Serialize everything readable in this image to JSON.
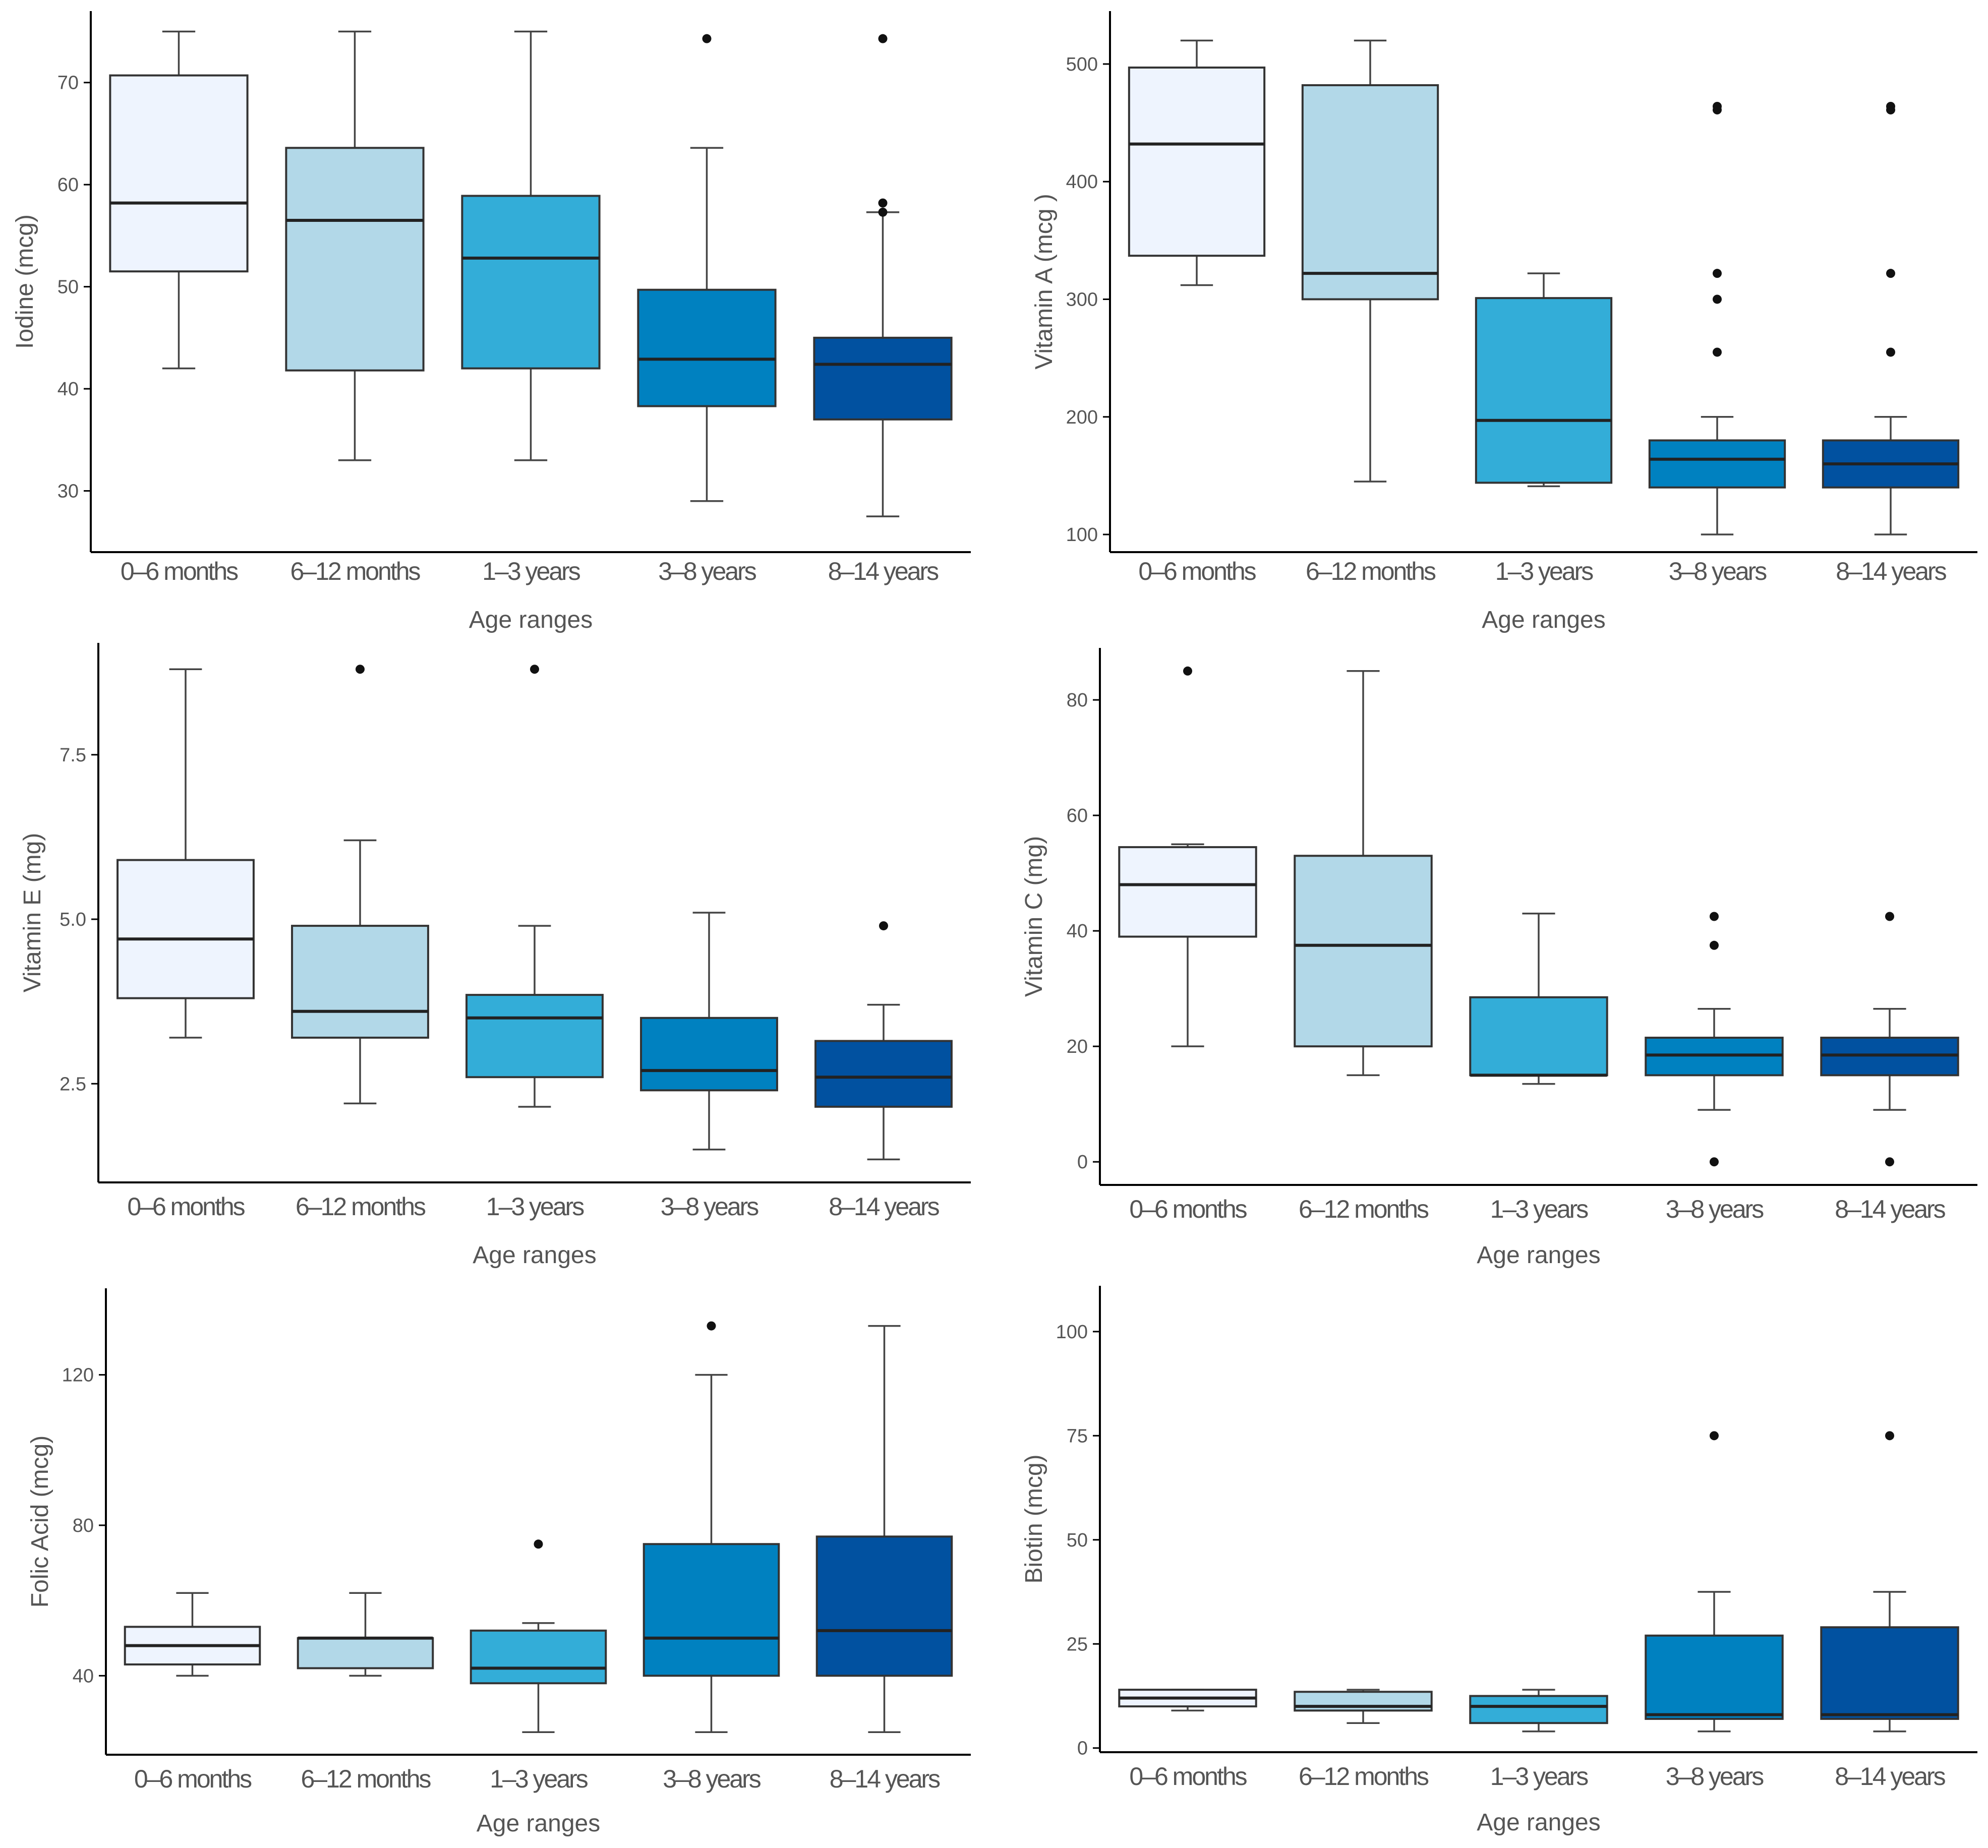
{
  "palette": [
    "#eef4fe",
    "#b2d8e8",
    "#33add8",
    "#0081c0",
    "#0151a0"
  ],
  "chart_data": [
    {
      "type": "boxplot",
      "ylabel": "Iodine (mcg)",
      "xlabel": "Age ranges",
      "ylim": [
        24,
        77
      ],
      "yticks": [
        30,
        40,
        50,
        60,
        70
      ],
      "categories": [
        "0–6 months",
        "6–12 months",
        "1–3 years",
        "3–8 years",
        "8–14 years"
      ],
      "boxes": [
        {
          "min": 42,
          "q1": 51.5,
          "median": 58.2,
          "q3": 70.7,
          "max": 75,
          "outliers": []
        },
        {
          "min": 33,
          "q1": 41.8,
          "median": 56.5,
          "q3": 63.6,
          "max": 75,
          "outliers": []
        },
        {
          "min": 33,
          "q1": 42,
          "median": 52.8,
          "q3": 58.9,
          "max": 75,
          "outliers": []
        },
        {
          "min": 29,
          "q1": 38.3,
          "median": 42.9,
          "q3": 49.7,
          "max": 63.6,
          "outliers": [
            74.3
          ]
        },
        {
          "min": 27.5,
          "q1": 37,
          "median": 42.4,
          "q3": 45,
          "max": 57.3,
          "outliers": [
            57.3,
            58.2,
            74.3
          ]
        }
      ]
    },
    {
      "type": "boxplot",
      "ylabel": "Vitamin A (mcg )",
      "xlabel": "Age ranges",
      "ylim": [
        85,
        545
      ],
      "yticks": [
        100,
        200,
        300,
        400,
        500
      ],
      "categories": [
        "0–6 months",
        "6–12 months",
        "1–3 years",
        "3–8 years",
        "8–14 years"
      ],
      "boxes": [
        {
          "min": 312,
          "q1": 337,
          "median": 432,
          "q3": 497,
          "max": 520,
          "outliers": []
        },
        {
          "min": 145,
          "q1": 300,
          "median": 322,
          "q3": 482,
          "max": 520,
          "outliers": []
        },
        {
          "min": 141,
          "q1": 144,
          "median": 197,
          "q3": 301,
          "max": 322,
          "outliers": []
        },
        {
          "min": 100,
          "q1": 140,
          "median": 164,
          "q3": 180,
          "max": 200,
          "outliers": [
            255,
            300,
            322,
            461,
            464
          ]
        },
        {
          "min": 100,
          "q1": 140,
          "median": 160,
          "q3": 180,
          "max": 200,
          "outliers": [
            255,
            322,
            461,
            464
          ]
        }
      ]
    },
    {
      "type": "boxplot",
      "ylabel": "Vitamin E (mg)",
      "xlabel": "Age ranges",
      "ylim": [
        1,
        9.2
      ],
      "yticks": [
        2.5,
        5.0,
        7.5
      ],
      "ytick_labels": [
        "2.5",
        "5.0",
        "7.5"
      ],
      "categories": [
        "0–6 months",
        "6–12 months",
        "1–3 years",
        "3–8 years",
        "8–14 years"
      ],
      "boxes": [
        {
          "min": 3.2,
          "q1": 3.8,
          "median": 4.7,
          "q3": 5.9,
          "max": 8.8,
          "outliers": []
        },
        {
          "min": 2.2,
          "q1": 3.2,
          "median": 3.6,
          "q3": 4.9,
          "max": 6.2,
          "outliers": [
            8.8
          ]
        },
        {
          "min": 2.15,
          "q1": 2.6,
          "median": 3.5,
          "q3": 3.85,
          "max": 4.9,
          "outliers": [
            8.8
          ]
        },
        {
          "min": 1.5,
          "q1": 2.4,
          "median": 2.7,
          "q3": 3.5,
          "max": 5.1,
          "outliers": []
        },
        {
          "min": 1.35,
          "q1": 2.15,
          "median": 2.6,
          "q3": 3.15,
          "max": 3.7,
          "outliers": [
            4.9
          ]
        }
      ]
    },
    {
      "type": "boxplot",
      "ylabel": "Vitamin C (mg)",
      "xlabel": "Age ranges",
      "ylim": [
        -4,
        89
      ],
      "yticks": [
        0,
        20,
        40,
        60,
        80
      ],
      "categories": [
        "0–6 months",
        "6–12 months",
        "1–3 years",
        "3–8 years",
        "8–14 years"
      ],
      "boxes": [
        {
          "min": 20,
          "q1": 39,
          "median": 48,
          "q3": 54.5,
          "max": 55,
          "outliers": [
            85
          ]
        },
        {
          "min": 15,
          "q1": 20,
          "median": 37.5,
          "q3": 53,
          "max": 85,
          "outliers": []
        },
        {
          "min": 13.5,
          "q1": 15,
          "median": 15,
          "q3": 28.5,
          "max": 43,
          "outliers": []
        },
        {
          "min": 9,
          "q1": 15,
          "median": 18.5,
          "q3": 21.5,
          "max": 26.5,
          "outliers": [
            0,
            37.5,
            42.5
          ]
        },
        {
          "min": 9,
          "q1": 15,
          "median": 18.5,
          "q3": 21.5,
          "max": 26.5,
          "outliers": [
            0,
            42.5
          ]
        }
      ]
    },
    {
      "type": "boxplot",
      "ylabel": "Folic Acid (mcg)",
      "xlabel": "Age ranges",
      "ylim": [
        19,
        143
      ],
      "yticks": [
        40,
        80,
        120
      ],
      "categories": [
        "0–6 months",
        "6–12 months",
        "1–3 years",
        "3–8 years",
        "8–14 years"
      ],
      "boxes": [
        {
          "min": 40,
          "q1": 43,
          "median": 48,
          "q3": 53,
          "max": 62,
          "outliers": []
        },
        {
          "min": 40,
          "q1": 42,
          "median": 50,
          "q3": 50,
          "max": 62,
          "outliers": []
        },
        {
          "min": 25,
          "q1": 38,
          "median": 42,
          "q3": 52,
          "max": 54,
          "outliers": [
            75
          ]
        },
        {
          "min": 25,
          "q1": 40,
          "median": 50,
          "q3": 75,
          "max": 120,
          "outliers": [
            133
          ]
        },
        {
          "min": 25,
          "q1": 40,
          "median": 52,
          "q3": 77,
          "max": 133,
          "outliers": []
        }
      ]
    },
    {
      "type": "boxplot",
      "ylabel": "Biotin (mcg)",
      "xlabel": "Age ranges",
      "ylim": [
        -1,
        111
      ],
      "yticks": [
        0,
        25,
        50,
        75,
        100
      ],
      "categories": [
        "0–6 months",
        "6–12 months",
        "1–3 years",
        "3–8 years",
        "8–14 years"
      ],
      "boxes": [
        {
          "min": 9,
          "q1": 10,
          "median": 12,
          "q3": 14,
          "max": 14,
          "outliers": []
        },
        {
          "min": 6,
          "q1": 9,
          "median": 10,
          "q3": 13.5,
          "max": 14,
          "outliers": []
        },
        {
          "min": 4,
          "q1": 6,
          "median": 10,
          "q3": 12.5,
          "max": 14,
          "outliers": []
        },
        {
          "min": 4,
          "q1": 7,
          "median": 8,
          "q3": 27,
          "max": 37.5,
          "outliers": [
            75
          ]
        },
        {
          "min": 4,
          "q1": 7,
          "median": 8,
          "q3": 29,
          "max": 37.5,
          "outliers": [
            75
          ]
        }
      ]
    }
  ]
}
